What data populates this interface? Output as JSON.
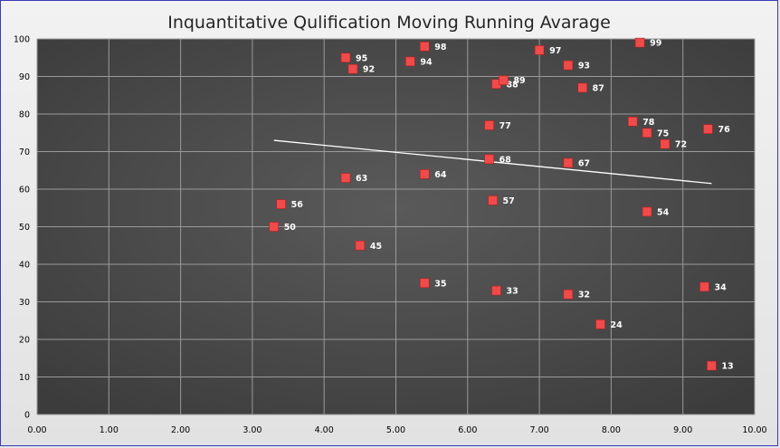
{
  "chart_data": {
    "type": "scatter",
    "title": "Inquantitative Qulification Moving Running Avarage",
    "xlabel": "",
    "ylabel": "",
    "xlim": [
      0,
      10
    ],
    "ylim": [
      0,
      100
    ],
    "x_ticks": [
      "0.00",
      "1.00",
      "2.00",
      "3.00",
      "4.00",
      "5.00",
      "6.00",
      "7.00",
      "8.00",
      "9.00",
      "10.00"
    ],
    "y_ticks": [
      "0",
      "10",
      "20",
      "30",
      "40",
      "50",
      "60",
      "70",
      "80",
      "90",
      "100"
    ],
    "grid": true,
    "legend": "none",
    "colors": {
      "marker": "#f04a4a",
      "trendline": "#ffffff",
      "plot_bg": "#4d4d4d"
    },
    "points": [
      {
        "x": 3.3,
        "y": 50,
        "label": "50"
      },
      {
        "x": 3.4,
        "y": 56,
        "label": "56"
      },
      {
        "x": 4.3,
        "y": 63,
        "label": "63"
      },
      {
        "x": 4.3,
        "y": 95,
        "label": "95"
      },
      {
        "x": 4.4,
        "y": 92,
        "label": "92"
      },
      {
        "x": 4.5,
        "y": 45,
        "label": "45"
      },
      {
        "x": 5.2,
        "y": 94,
        "label": "94"
      },
      {
        "x": 5.4,
        "y": 98,
        "label": "98"
      },
      {
        "x": 5.4,
        "y": 64,
        "label": "64"
      },
      {
        "x": 5.4,
        "y": 35,
        "label": "35"
      },
      {
        "x": 6.3,
        "y": 77,
        "label": "77"
      },
      {
        "x": 6.3,
        "y": 68,
        "label": "68"
      },
      {
        "x": 6.35,
        "y": 57,
        "label": "57"
      },
      {
        "x": 6.4,
        "y": 33,
        "label": "33"
      },
      {
        "x": 6.4,
        "y": 88,
        "label": "88"
      },
      {
        "x": 6.5,
        "y": 89,
        "label": "89"
      },
      {
        "x": 7.0,
        "y": 97,
        "label": "97"
      },
      {
        "x": 7.4,
        "y": 93,
        "label": "93"
      },
      {
        "x": 7.4,
        "y": 67,
        "label": "67"
      },
      {
        "x": 7.4,
        "y": 32,
        "label": "32"
      },
      {
        "x": 7.6,
        "y": 87,
        "label": "87"
      },
      {
        "x": 7.85,
        "y": 24,
        "label": "24"
      },
      {
        "x": 8.3,
        "y": 78,
        "label": "78"
      },
      {
        "x": 8.4,
        "y": 99,
        "label": "99"
      },
      {
        "x": 8.5,
        "y": 75,
        "label": "75"
      },
      {
        "x": 8.5,
        "y": 54,
        "label": "54"
      },
      {
        "x": 8.75,
        "y": 72,
        "label": "72"
      },
      {
        "x": 9.3,
        "y": 34,
        "label": "34"
      },
      {
        "x": 9.35,
        "y": 76,
        "label": "76"
      },
      {
        "x": 9.4,
        "y": 13,
        "label": "13"
      }
    ],
    "trendline": {
      "x": [
        3.3,
        9.4
      ],
      "y": [
        73,
        61.5
      ]
    }
  }
}
